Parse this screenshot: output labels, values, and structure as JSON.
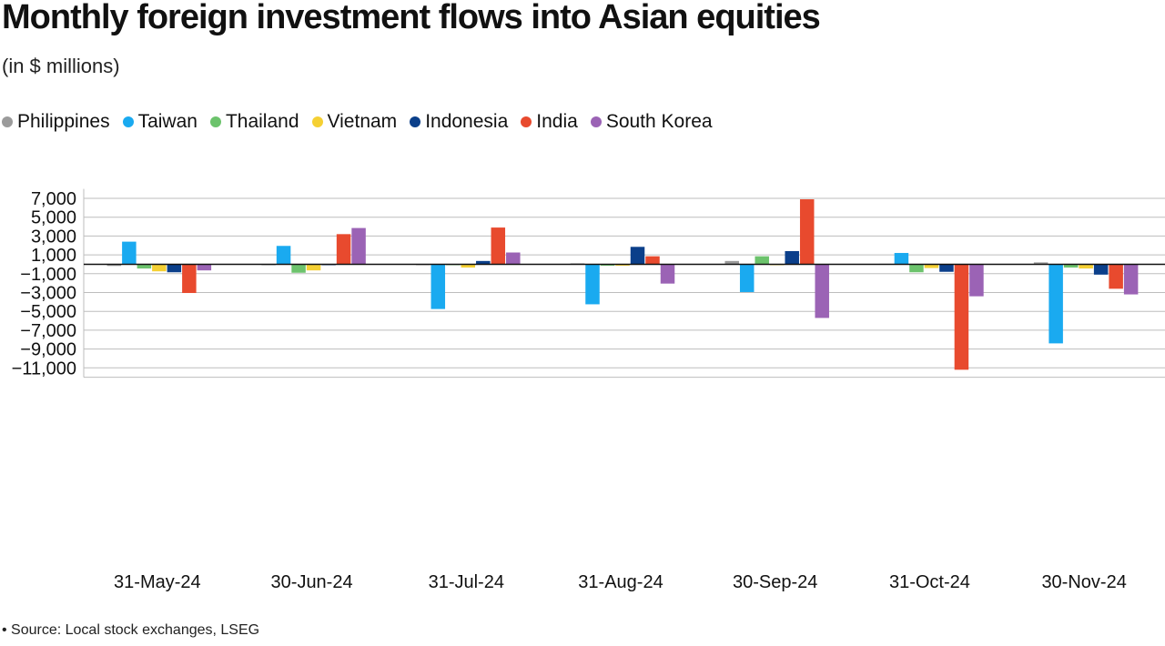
{
  "title": "Monthly foreign investment flows into Asian equities",
  "subtitle": "(in $ millions)",
  "source": "• Source: Local stock exchanges, LSEG",
  "chart_data": {
    "type": "bar",
    "title": "Monthly foreign investment flows into Asian equities",
    "subtitle": "(in $ millions)",
    "categories": [
      "31-May-24",
      "30-Jun-24",
      "31-Jul-24",
      "31-Aug-24",
      "30-Sep-24",
      "31-Oct-24",
      "30-Nov-24"
    ],
    "ylim": [
      -12000,
      8000
    ],
    "yticks": [
      7000,
      5000,
      3000,
      1000,
      -1000,
      -3000,
      -5000,
      -7000,
      -9000,
      -11000
    ],
    "ytick_labels": [
      "7,000",
      "5,000",
      "3,000",
      "1,000",
      "−1,000",
      "−3,000",
      "−5,000",
      "−7,000",
      "−9,000",
      "−11,000"
    ],
    "grid": true,
    "legend_position": "top-left",
    "series": [
      {
        "name": "Philippines",
        "color": "#9b9b9b",
        "values": [
          -180,
          -100,
          -20,
          100,
          350,
          50,
          200
        ]
      },
      {
        "name": "Taiwan",
        "color": "#1aaaf0",
        "values": [
          2400,
          1950,
          -4750,
          -4250,
          -2950,
          1200,
          -8400
        ]
      },
      {
        "name": "Thailand",
        "color": "#6cc36c",
        "values": [
          -450,
          -900,
          -30,
          -150,
          850,
          -850,
          -350
        ]
      },
      {
        "name": "Vietnam",
        "color": "#f5d033",
        "values": [
          -750,
          -650,
          -350,
          -150,
          -100,
          -400,
          -450
        ]
      },
      {
        "name": "Indonesia",
        "color": "#0b3f8a",
        "values": [
          -850,
          -100,
          350,
          1850,
          1400,
          -800,
          -1100
        ]
      },
      {
        "name": "India",
        "color": "#e84a2e",
        "values": [
          -3050,
          3200,
          3900,
          850,
          6900,
          -11200,
          -2600
        ]
      },
      {
        "name": "South Korea",
        "color": "#9b63b5",
        "values": [
          -650,
          3850,
          1250,
          -2050,
          -5700,
          -3400,
          -3200
        ]
      }
    ]
  }
}
